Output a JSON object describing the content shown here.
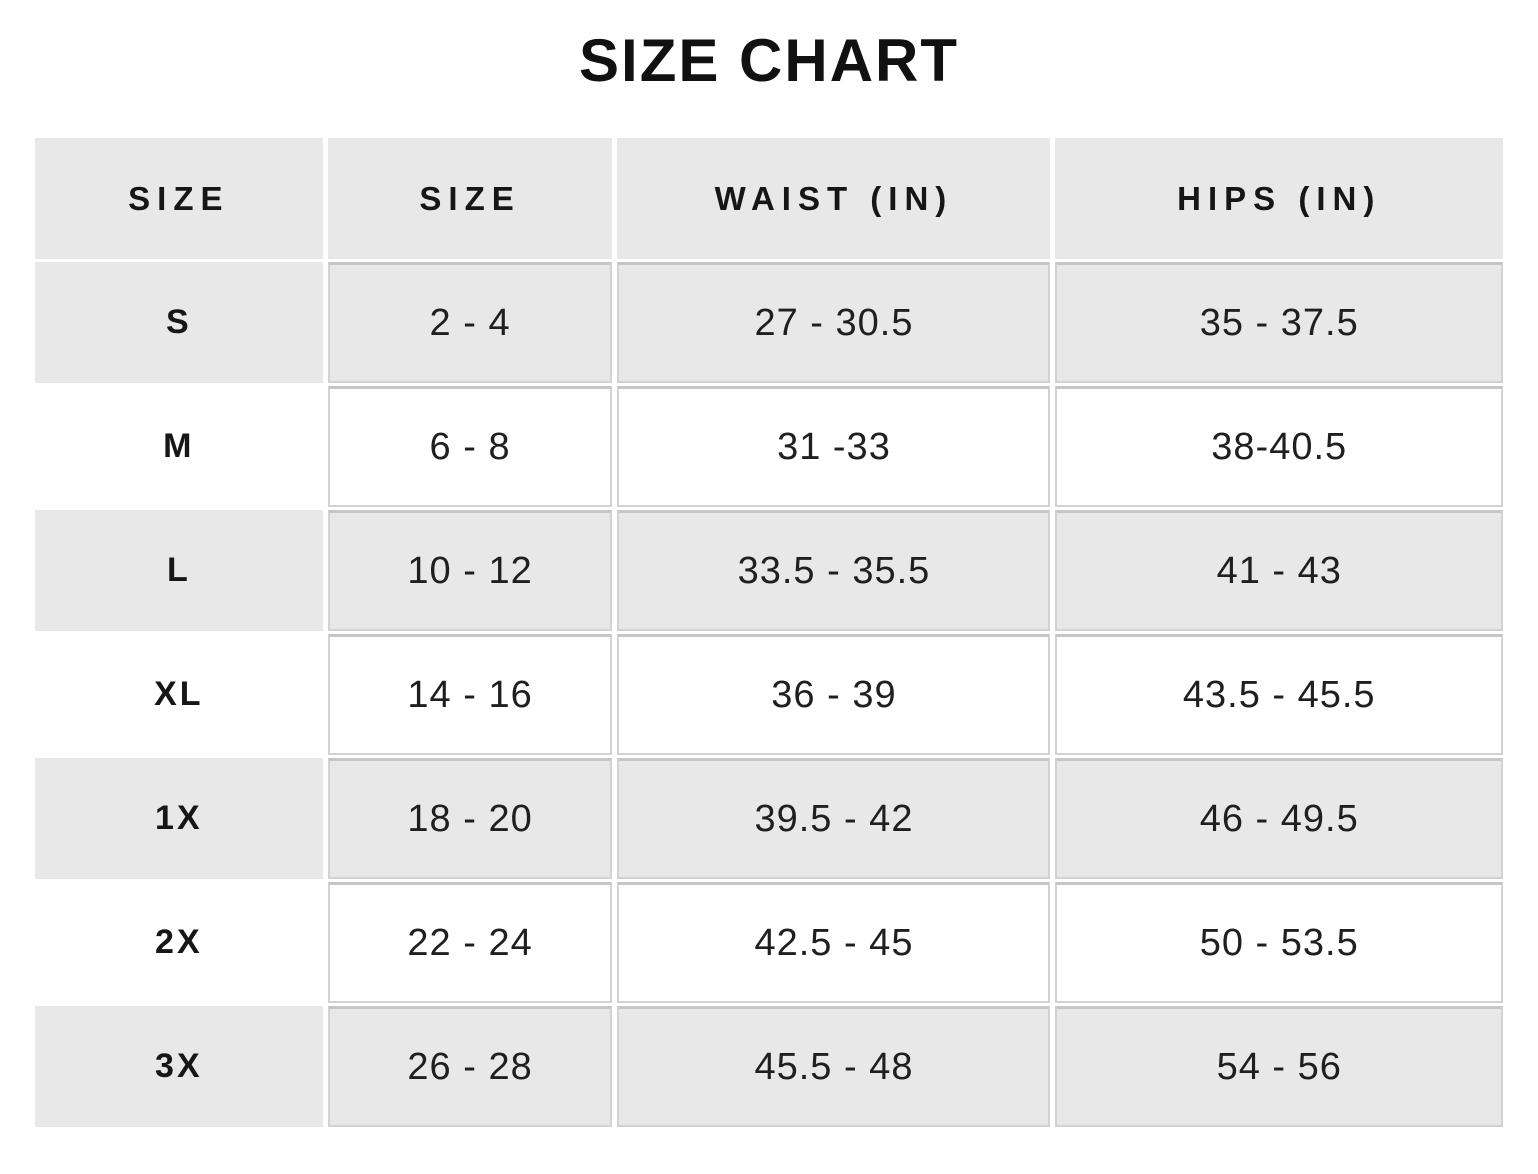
{
  "title": "SIZE CHART",
  "colors": {
    "background": "#ffffff",
    "row_shade": "#e8e8e8",
    "cell_border": "#c9c9c9",
    "text": "#1a1a1a"
  },
  "chart_data": {
    "type": "table",
    "title": "SIZE CHART",
    "columns": [
      "SIZE",
      "SIZE",
      "WAIST (IN)",
      "HIPS (IN)"
    ],
    "rows": [
      [
        "S",
        "2 - 4",
        "27 - 30.5",
        "35 - 37.5"
      ],
      [
        "M",
        "6 - 8",
        "31 -33",
        "38-40.5"
      ],
      [
        "L",
        "10 - 12",
        "33.5 - 35.5",
        "41 - 43"
      ],
      [
        "XL",
        "14 - 16",
        "36 - 39",
        "43.5 - 45.5"
      ],
      [
        "1X",
        "18 - 20",
        "39.5 - 42",
        "46 - 49.5"
      ],
      [
        "2X",
        "22 - 24",
        "42.5 - 45",
        "50 - 53.5"
      ],
      [
        "3X",
        "26 - 28",
        "45.5 - 48",
        "54 - 56"
      ]
    ],
    "layout_hints": {
      "alternating_rows": true,
      "shaded_row_indices": [
        0,
        2,
        4,
        6
      ],
      "header_shaded": true
    }
  }
}
